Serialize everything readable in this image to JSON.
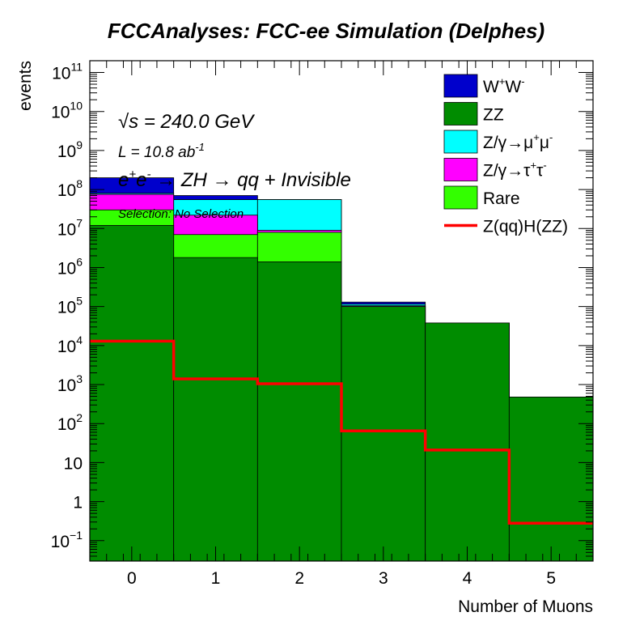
{
  "chart_data": {
    "type": "bar",
    "subtype": "stacked-histogram",
    "title": "FCCAnalyses: FCC-ee Simulation (Delphes)",
    "xlabel": "Number of Muons",
    "ylabel": "events",
    "xlim": [
      -0.5,
      5.5
    ],
    "ylim": [
      0.03,
      200000000000
    ],
    "yscale": "log",
    "grid": false,
    "legend_position": "top-right",
    "x_ticks": [
      "0",
      "1",
      "2",
      "3",
      "4",
      "5"
    ],
    "y_ticks": [
      {
        "value": 0.1,
        "base": "10",
        "exp": "−1"
      },
      {
        "value": 1,
        "base": "1",
        "exp": ""
      },
      {
        "value": 10,
        "base": "10",
        "exp": ""
      },
      {
        "value": 100,
        "base": "10",
        "exp": "2"
      },
      {
        "value": 1000,
        "base": "10",
        "exp": "3"
      },
      {
        "value": 10000,
        "base": "10",
        "exp": "4"
      },
      {
        "value": 100000,
        "base": "10",
        "exp": "5"
      },
      {
        "value": 1000000,
        "base": "10",
        "exp": "6"
      },
      {
        "value": 10000000,
        "base": "10",
        "exp": "7"
      },
      {
        "value": 100000000,
        "base": "10",
        "exp": "8"
      },
      {
        "value": 1000000000,
        "base": "10",
        "exp": "9"
      },
      {
        "value": 10000000000,
        "base": "10",
        "exp": "10"
      },
      {
        "value": 100000000000,
        "base": "10",
        "exp": "11"
      }
    ],
    "bins": [
      [
        -0.5,
        0.5
      ],
      [
        0.5,
        1.5
      ],
      [
        1.5,
        2.5
      ],
      [
        2.5,
        3.5
      ],
      [
        3.5,
        4.5
      ],
      [
        4.5,
        5.5
      ]
    ],
    "stacked_series": [
      {
        "name": "ZZ",
        "color": "#008c00",
        "cumulative": [
          12000000,
          1800000,
          1400000,
          100000,
          38000,
          480
        ]
      },
      {
        "name": "Rare",
        "color": "#33ff00",
        "cumulative": [
          30000000,
          7000000,
          8000000,
          100000,
          38000,
          480
        ]
      },
      {
        "name": "Z/γ→τ⁺τ⁻",
        "color": "#ff00ff",
        "cumulative": [
          75000000,
          22000000,
          9000000,
          105000,
          38000,
          480
        ]
      },
      {
        "name": "Z/γ→μ⁺μ⁻",
        "color": "#00ffff",
        "cumulative": [
          80000000,
          55000000,
          55000000,
          115000,
          38000,
          480
        ]
      },
      {
        "name": "W⁺W⁻",
        "color": "#0000cc",
        "cumulative": [
          200000000,
          70000000,
          55000000,
          130000,
          38000,
          480
        ]
      }
    ],
    "overlay_series": [
      {
        "name": "Z(qq)H(ZZ)",
        "color": "#ff0000",
        "values": [
          13000,
          1400,
          1050,
          65,
          21,
          0.28
        ]
      }
    ],
    "legend": [
      {
        "key": "ww",
        "base": "W",
        "sup1": "+",
        "mid": "W",
        "sup2": "-",
        "color": "#0000cc",
        "kind": "box"
      },
      {
        "key": "zz",
        "base": "ZZ",
        "sup1": "",
        "mid": "",
        "sup2": "",
        "color": "#008c00",
        "kind": "box"
      },
      {
        "key": "zmumu",
        "base": "Z/γ→μ",
        "sup1": "+",
        "mid": "μ",
        "sup2": "-",
        "color": "#00ffff",
        "kind": "box"
      },
      {
        "key": "ztautau",
        "base": "Z/γ→τ",
        "sup1": "+",
        "mid": "τ",
        "sup2": "-",
        "color": "#ff00ff",
        "kind": "box"
      },
      {
        "key": "rare",
        "base": "Rare",
        "sup1": "",
        "mid": "",
        "sup2": "",
        "color": "#33ff00",
        "kind": "box"
      },
      {
        "key": "signal",
        "base": "Z(qq)H(ZZ)",
        "sup1": "",
        "mid": "",
        "sup2": "",
        "color": "#ff0000",
        "kind": "line"
      }
    ],
    "annotations": {
      "sqrt_s_symbol": "√s",
      "sqrt_s_value": " = 240.0 GeV",
      "lumi_text": "L = 10.8 ab",
      "lumi_exp": "-1",
      "process_e": "e",
      "process_plus": "+",
      "process_e2": "e",
      "process_minus": "-",
      "process_rest": " → ZH  → qq + Invisible",
      "selection": "Selection: No Selection"
    }
  }
}
